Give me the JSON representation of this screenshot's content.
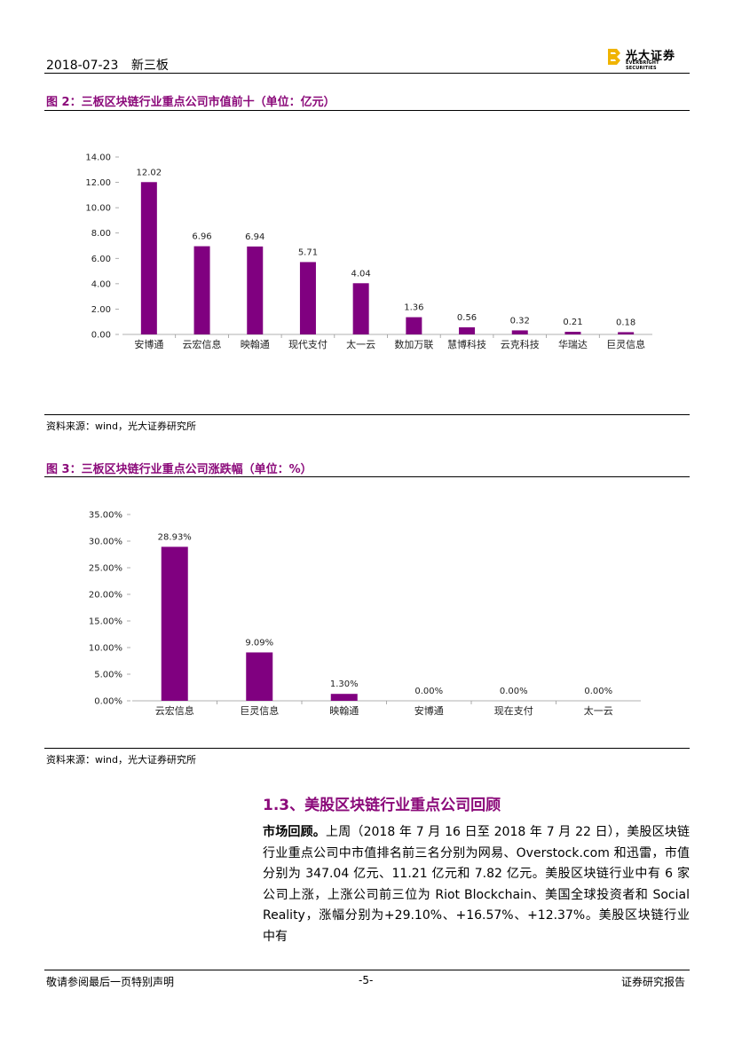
{
  "header": {
    "date": "2018-07-23",
    "category": "新三板",
    "logo_cn": "光大证券",
    "logo_en": "EVERBRIGHT SECURITIES"
  },
  "figure2": {
    "title": "图 2：三板区块链行业重点公司市值前十（单位：亿元）",
    "source": "资料来源：wind，光大证券研究所"
  },
  "figure3": {
    "title": "图 3：三板区块链行业重点公司涨跌幅（单位：%）",
    "source": "资料来源：wind，光大证券研究所"
  },
  "chart_data": [
    {
      "type": "bar",
      "categories": [
        "安博通",
        "云宏信息",
        "映翰通",
        "现代支付",
        "太一云",
        "数加万联",
        "慧博科技",
        "云克科技",
        "华瑞达",
        "巨灵信息"
      ],
      "values": [
        12.02,
        6.96,
        6.94,
        5.71,
        4.04,
        1.36,
        0.56,
        0.32,
        0.21,
        0.18
      ],
      "value_labels": [
        "12.02",
        "6.96",
        "6.94",
        "5.71",
        "4.04",
        "1.36",
        "0.56",
        "0.32",
        "0.21",
        "0.18"
      ],
      "ylim": [
        0,
        14
      ],
      "yticks": [
        "0.00",
        "2.00",
        "4.00",
        "6.00",
        "8.00",
        "10.00",
        "12.00",
        "14.00"
      ],
      "color": "#800080"
    },
    {
      "type": "bar",
      "categories": [
        "云宏信息",
        "巨灵信息",
        "映翰通",
        "安博通",
        "现在支付",
        "太一云"
      ],
      "values": [
        28.93,
        9.09,
        1.3,
        0.0,
        0.0,
        0.0
      ],
      "value_labels": [
        "28.93%",
        "9.09%",
        "1.30%",
        "0.00%",
        "0.00%",
        "0.00%"
      ],
      "ylim": [
        0,
        35
      ],
      "yticks": [
        "0.00%",
        "5.00%",
        "10.00%",
        "15.00%",
        "20.00%",
        "25.00%",
        "30.00%",
        "35.00%"
      ],
      "color": "#800080"
    }
  ],
  "section": {
    "heading": "1.3、美股区块链行业重点公司回顾",
    "lead": "市场回顾。",
    "body": "上周（2018 年 7 月 16 日至 2018 年 7 月 22 日），美股区块链行业重点公司中市值排名前三名分别为网易、Overstock.com 和迅雷，市值分别为 347.04 亿元、11.21 亿元和 7.82 亿元。美股区块链行业中有 6 家公司上涨，上涨公司前三位为 Riot Blockchain、美国全球投资者和 Social Reality，涨幅分别为+29.10%、+16.57%、+12.37%。美股区块链行业中有"
  },
  "footer": {
    "left": "敬请参阅最后一页特别声明",
    "center": "-5-",
    "right": "证券研究报告"
  }
}
